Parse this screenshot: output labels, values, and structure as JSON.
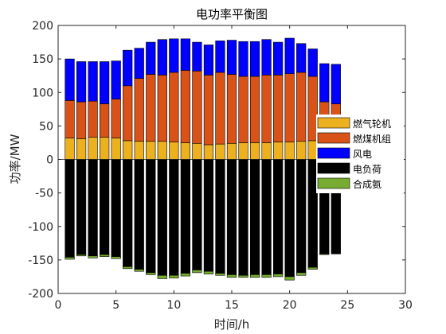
{
  "chart_data": {
    "type": "bar",
    "title": "电功率平衡图",
    "xlabel": "时间/h",
    "ylabel": "功率/MW",
    "xlim": [
      0,
      30
    ],
    "ylim": [
      -200,
      200
    ],
    "xticks": [
      "0",
      "5",
      "10",
      "15",
      "20",
      "25",
      "30"
    ],
    "yticks": [
      "-200",
      "-150",
      "-100",
      "-50",
      "0",
      "50",
      "100",
      "150",
      "200"
    ],
    "stacked": true,
    "bar_width": 0.8,
    "legend_position": "right-center",
    "grid": false,
    "x": [
      1,
      2,
      3,
      4,
      5,
      6,
      7,
      8,
      9,
      10,
      11,
      12,
      13,
      14,
      15,
      16,
      17,
      18,
      19,
      20,
      21,
      22,
      23,
      24
    ],
    "series": [
      {
        "name": "燃气轮机",
        "color": "#EDB120",
        "values": [
          32,
          31,
          33,
          33,
          32,
          28,
          27,
          27,
          27,
          26,
          25,
          24,
          22,
          23,
          24,
          25,
          25,
          25,
          26,
          26,
          27,
          28,
          23,
          20
        ]
      },
      {
        "name": "燃煤机组",
        "color": "#D95319",
        "values": [
          56,
          55,
          54,
          50,
          58,
          82,
          94,
          100,
          99,
          104,
          108,
          108,
          104,
          107,
          103,
          99,
          99,
          101,
          100,
          102,
          103,
          96,
          63,
          63
        ]
      },
      {
        "name": "风电",
        "color": "#0000FF",
        "values": [
          62,
          60,
          59,
          63,
          57,
          53,
          45,
          48,
          53,
          50,
          47,
          43,
          45,
          47,
          51,
          52,
          52,
          53,
          49,
          53,
          43,
          41,
          57,
          59
        ]
      },
      {
        "name": "电负荷",
        "color": "#000000",
        "values": [
          -146,
          -142,
          -144,
          -142,
          -145,
          -160,
          -164,
          -169,
          -173,
          -173,
          -170,
          -165,
          -167,
          -170,
          -172,
          -173,
          -172,
          -172,
          -171,
          -175,
          -169,
          -161,
          -141,
          -141
        ]
      },
      {
        "name": "合成氨",
        "color": "#77AC30",
        "values": [
          -3,
          -2,
          -3,
          -3,
          -3,
          -3,
          -3,
          -3,
          -5,
          -4,
          -4,
          -4,
          -4,
          -3,
          -4,
          -3,
          -4,
          -4,
          -4,
          -5,
          -4,
          -3,
          -1,
          0
        ]
      }
    ]
  }
}
